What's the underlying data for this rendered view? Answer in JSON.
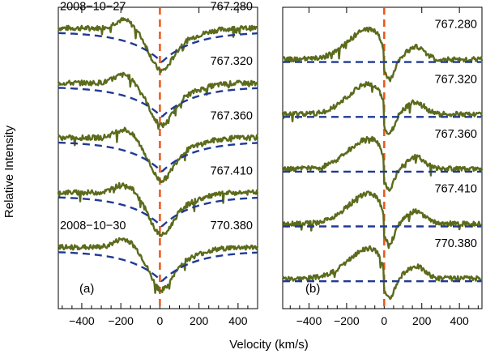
{
  "chart_data": [
    {
      "type": "line",
      "panel_label": "(a)",
      "xlabel": "Velocity (km/s)",
      "ylabel": "Relative Intensity",
      "xlim": [
        -520,
        500
      ],
      "ylim": [
        -0.2,
        5.3
      ],
      "x_ticks": [
        -400,
        -200,
        0,
        200,
        400
      ],
      "x_tick_labels": [
        "−400",
        "−200",
        "0",
        "200",
        "400"
      ],
      "date_labels": [
        {
          "text": "2008−10−27",
          "spectrum": 0
        },
        {
          "text": "2008−10−30",
          "spectrum": 4
        }
      ],
      "reference_line": {
        "x": 0,
        "color": "#e8571a",
        "style": "dashed"
      },
      "spectra": [
        {
          "label": "767.280",
          "offset": 4.3
        },
        {
          "label": "767.320",
          "offset": 3.3
        },
        {
          "label": "767.360",
          "offset": 2.3
        },
        {
          "label": "767.410",
          "offset": 1.3
        },
        {
          "label": "770.380",
          "offset": 0.3
        }
      ],
      "observed_color": "#5b6b1c",
      "fit_color": "#1f3a93",
      "fit_style": "dashed",
      "fit_shape": "absorption",
      "fit_depth": 0.55,
      "fit_width": 160
    },
    {
      "type": "line",
      "panel_label": "(b)",
      "xlabel": "Velocity (km/s)",
      "ylabel": "",
      "xlim": [
        -540,
        520
      ],
      "ylim": [
        -0.2,
        5.3
      ],
      "x_ticks": [
        -400,
        -200,
        0,
        200,
        400
      ],
      "x_tick_labels": [
        "−400",
        "−200",
        "0",
        "200",
        "400"
      ],
      "reference_line": {
        "x": 0,
        "color": "#e8571a",
        "style": "dashed"
      },
      "spectra": [
        {
          "label": "767.280",
          "offset": 4.3
        },
        {
          "label": "767.320",
          "offset": 3.3
        },
        {
          "label": "767.360",
          "offset": 2.3
        },
        {
          "label": "767.410",
          "offset": 1.3
        },
        {
          "label": "770.380",
          "offset": 0.3
        }
      ],
      "observed_color": "#5b6b1c",
      "fit_color": "#1f3a93",
      "fit_style": "dashed",
      "fit_shape": "flat"
    }
  ]
}
